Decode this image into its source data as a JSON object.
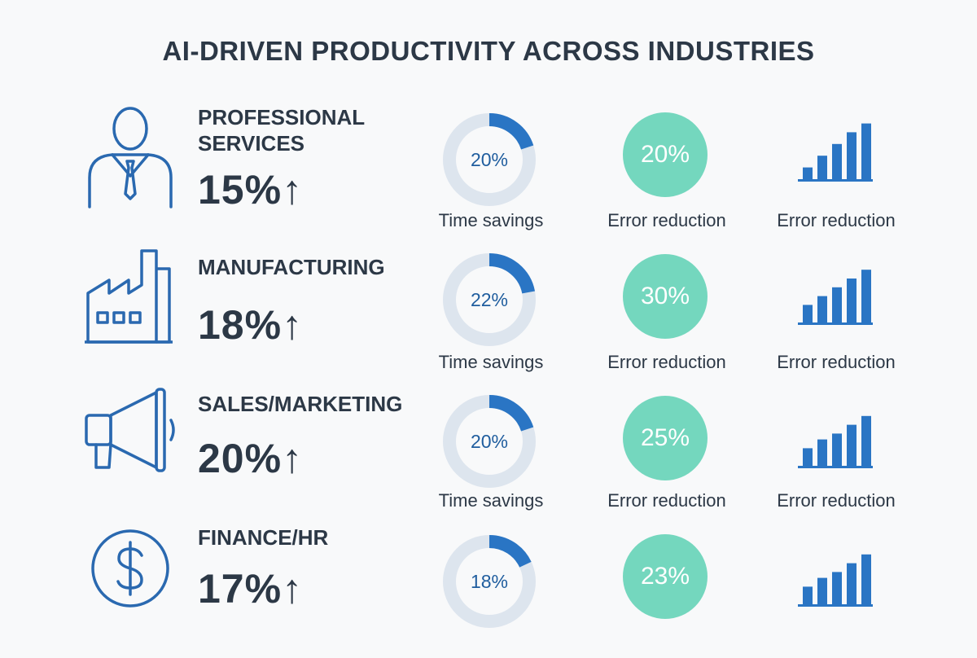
{
  "chart_data": {
    "type": "infographic",
    "title": "AI-DRIVEN PRODUCTIVITY ACROSS INDUSTRIES",
    "colors": {
      "text": "#2c3846",
      "icon_blue": "#2a69b0",
      "donut_fill": "#2a75c4",
      "donut_track": "#dde5ee",
      "circle": "#74d7be",
      "bar": "#2a75c4"
    },
    "industries": [
      {
        "name_lines": [
          "PROFESSIONAL",
          "SERVICES"
        ],
        "icon": "person-icon",
        "productivity": "15%↑",
        "time_savings": {
          "value": 20,
          "label": "20%",
          "caption": "Time savings"
        },
        "error_reduction": {
          "value": 20,
          "label": "20%",
          "caption": "Error reduction"
        },
        "trend": {
          "values": [
            2,
            4,
            6,
            8,
            9.5
          ],
          "caption": "Error reduction"
        }
      },
      {
        "name_lines": [
          "MANUFACTURING"
        ],
        "icon": "factory-icon",
        "productivity": "18%↑",
        "time_savings": {
          "value": 22,
          "label": "22%",
          "caption": "Time savings"
        },
        "error_reduction": {
          "value": 30,
          "label": "30%",
          "caption": "Error reduction"
        },
        "trend": {
          "values": [
            3,
            4.5,
            6,
            7.5,
            9
          ],
          "caption": "Error reduction"
        }
      },
      {
        "name_lines": [
          "SALES/MARKETING"
        ],
        "icon": "megaphone-icon",
        "productivity": "20%↑",
        "time_savings": {
          "value": 20,
          "label": "20%",
          "caption": "Time savings"
        },
        "error_reduction": {
          "value": 25,
          "label": "25%",
          "caption": "Error reduction"
        },
        "trend": {
          "values": [
            3,
            4.5,
            5.5,
            7,
            8.5
          ],
          "caption": "Error reduction"
        }
      },
      {
        "name_lines": [
          "FINANCE/HR"
        ],
        "icon": "dollar-icon",
        "productivity": "17%↑",
        "time_savings": {
          "value": 18,
          "label": "18%",
          "caption": ""
        },
        "error_reduction": {
          "value": 23,
          "label": "23%",
          "caption": ""
        },
        "trend": {
          "values": [
            3,
            4.5,
            5.5,
            7,
            8.5
          ],
          "caption": ""
        }
      }
    ]
  }
}
